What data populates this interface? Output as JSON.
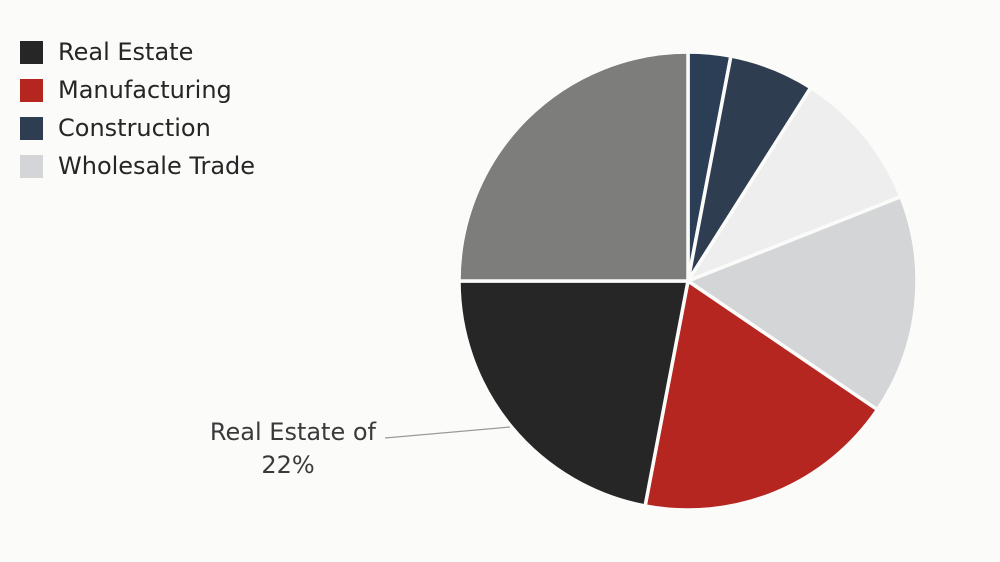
{
  "chart_data": {
    "type": "pie",
    "legend_position": "top-left",
    "legend": [
      {
        "label": "Real Estate",
        "color": "#262626"
      },
      {
        "label": "Manufacturing",
        "color": "#b52620"
      },
      {
        "label": "Construction",
        "color": "#2e3d50"
      },
      {
        "label": "Wholesale Trade",
        "color": "#d3d5d6"
      }
    ],
    "slices": [
      {
        "value": 3,
        "color": "#2b3e56"
      },
      {
        "value": 6,
        "color": "#2e3d50"
      },
      {
        "value": 10,
        "color": "#eeeeee"
      },
      {
        "value": 15.5,
        "color": "#d3d5d6"
      },
      {
        "value": 18.5,
        "color": "#b52620"
      },
      {
        "name": "Real Estate",
        "value": 22,
        "color": "#262626"
      },
      {
        "value": 25,
        "color": "#7d7e7c"
      }
    ],
    "annotation": {
      "line1": "Real Estate of",
      "line2": "22%"
    }
  }
}
